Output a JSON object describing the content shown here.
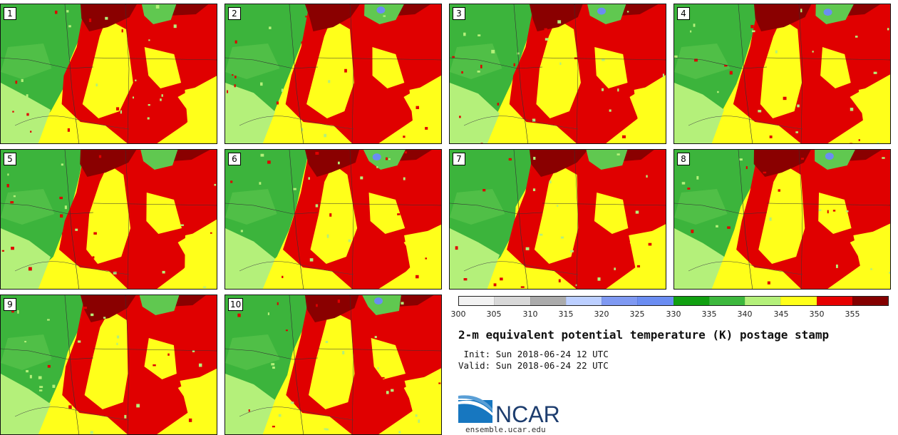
{
  "panels": [
    {
      "label": "1"
    },
    {
      "label": "2"
    },
    {
      "label": "3"
    },
    {
      "label": "4"
    },
    {
      "label": "5"
    },
    {
      "label": "6"
    },
    {
      "label": "7"
    },
    {
      "label": "8"
    },
    {
      "label": "9"
    },
    {
      "label": "10"
    }
  ],
  "colorbar": {
    "bins": [
      "#f2f2f2",
      "#d8d8d8",
      "#ababab",
      "#bccfff",
      "#7f99f2",
      "#6b8df2",
      "#11a011",
      "#3db83d",
      "#b4f07a",
      "#ffff1a",
      "#e60000",
      "#840000"
    ],
    "tick_labels": [
      "300",
      "305",
      "310",
      "315",
      "320",
      "325",
      "330",
      "335",
      "340",
      "345",
      "350",
      "355"
    ]
  },
  "colors": {
    "dark_green": "#3cb43c",
    "green": "#60c850",
    "light_green": "#b4f07a",
    "yellow": "#ffff1a",
    "red": "#e00000",
    "dark_red": "#8a0000",
    "blue": "#6b8df2"
  },
  "title": "2-m equivalent potential temperature (K) postage stamp",
  "init": " Init: Sun 2018-06-24 12 UTC",
  "valid": "Valid: Sun 2018-06-24 22 UTC",
  "logo_text": "NCAR",
  "site": "ensemble.ucar.edu"
}
